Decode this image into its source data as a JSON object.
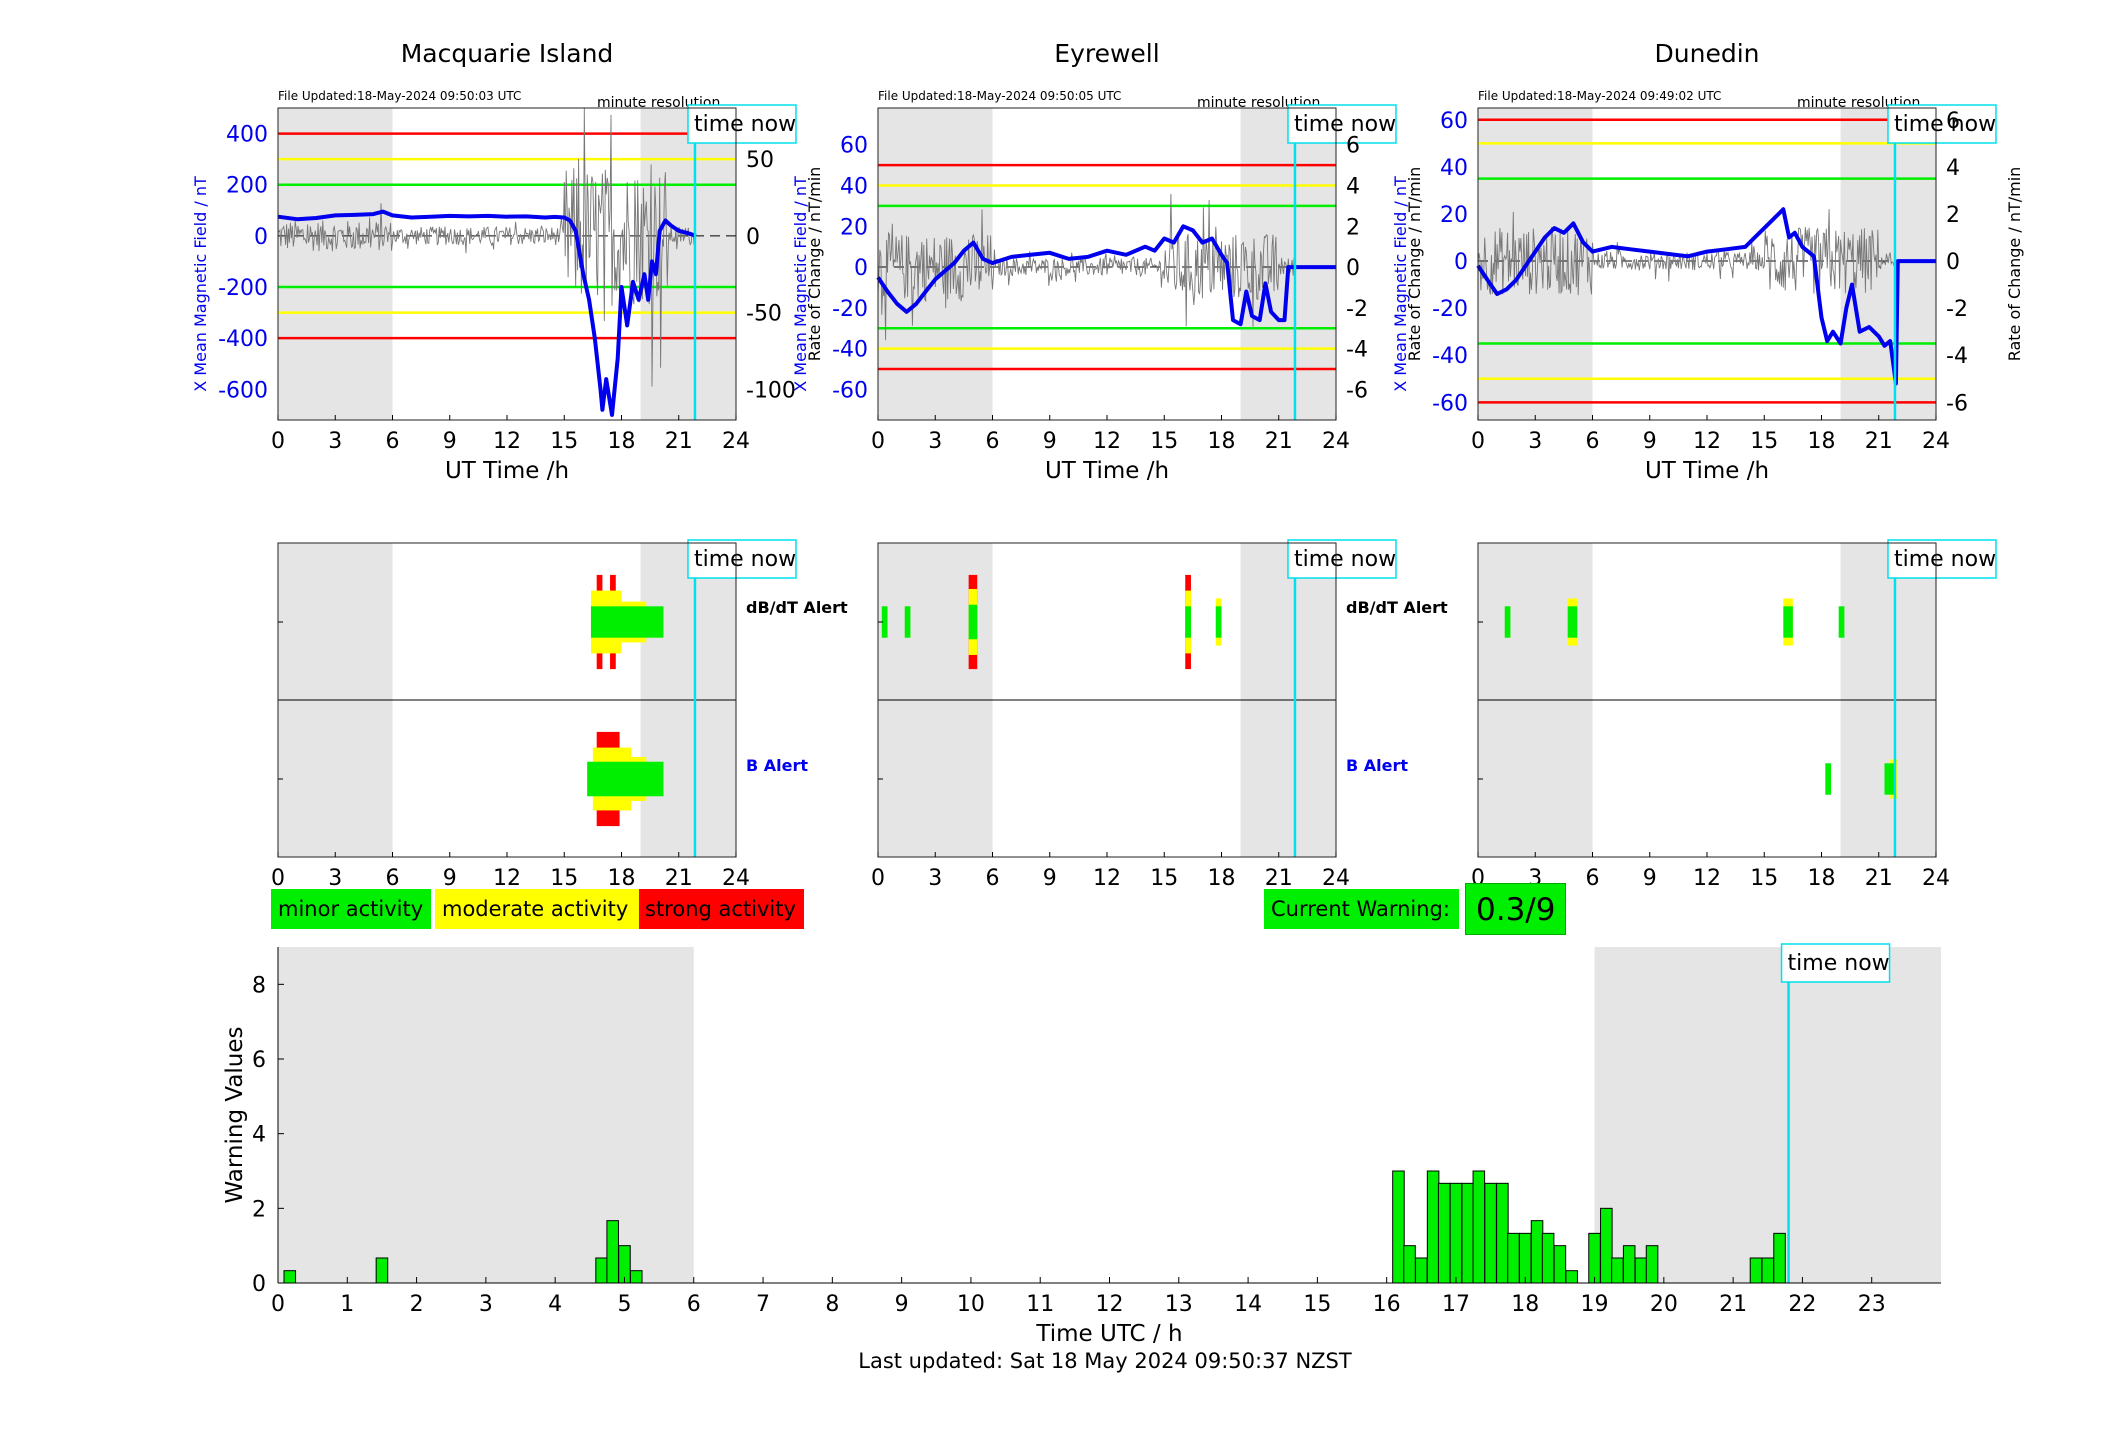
{
  "ut_axis_label": "UT Time /h",
  "time_now_label": "time now",
  "minute_resolution_label": "minute resolution",
  "chart_data": [
    {
      "type": "line",
      "title": "Macquarie Island",
      "file_updated": "File Updated:18-May-2024 09:50:03 UTC",
      "ylabel_left": "X Mean Magnetic Field / nT",
      "ylabel_right": "Rate of Change / nT/min",
      "xlim": [
        0,
        24
      ],
      "ylim_left": [
        -720,
        500
      ],
      "ylim_right": [
        -120,
        83.3
      ],
      "x_ticks": [
        0,
        3,
        6,
        9,
        12,
        15,
        18,
        21,
        24
      ],
      "y_ticks_left": [
        400,
        200,
        0,
        -200,
        -400,
        -600
      ],
      "y_ticks_right": [
        50,
        0,
        -50,
        -100
      ],
      "thresholds": [
        {
          "level": "strong",
          "value": 400,
          "color": "#ff0000"
        },
        {
          "level": "moderate",
          "value": 300,
          "color": "#ffff00"
        },
        {
          "level": "minor",
          "value": 200,
          "color": "#00ee00"
        },
        {
          "level": "minor",
          "value": -200,
          "color": "#00ee00"
        },
        {
          "level": "moderate",
          "value": -300,
          "color": "#ffff00"
        },
        {
          "level": "strong",
          "value": -400,
          "color": "#ff0000"
        }
      ],
      "night_bands": [
        [
          0,
          6
        ],
        [
          19,
          24
        ]
      ],
      "time_now": 21.85,
      "series_x_mean": {
        "x": [
          0,
          1,
          2,
          3,
          4,
          5,
          5.5,
          6,
          7,
          8,
          9,
          10,
          11,
          12,
          13,
          14,
          14.5,
          15,
          15.3,
          15.6,
          16,
          16.3,
          16.6,
          16.9,
          17.0,
          17.2,
          17.5,
          17.8,
          18.0,
          18.3,
          18.6,
          18.9,
          19.2,
          19.4,
          19.6,
          19.8,
          20.0,
          20.3,
          20.6,
          21.0,
          21.5,
          21.9
        ],
        "y": [
          75,
          65,
          70,
          80,
          82,
          85,
          95,
          80,
          72,
          75,
          78,
          76,
          78,
          75,
          76,
          72,
          74,
          72,
          60,
          20,
          -150,
          -250,
          -400,
          -600,
          -680,
          -560,
          -700,
          -480,
          -200,
          -350,
          -180,
          -250,
          -150,
          -250,
          -100,
          -150,
          20,
          60,
          40,
          20,
          10,
          0
        ]
      },
      "series_rate_note": "grey 1-minute rate of change trace"
    },
    {
      "type": "line",
      "title": "Eyrewell",
      "file_updated": "File Updated:18-May-2024 09:50:05 UTC",
      "ylabel_left": "X Mean Magnetic Field / nT",
      "ylabel_right": "Rate of Change / nT/min",
      "xlim": [
        0,
        24
      ],
      "ylim_left": [
        -75,
        78
      ],
      "ylim_right": [
        -7.5,
        7.8
      ],
      "x_ticks": [
        0,
        3,
        6,
        9,
        12,
        15,
        18,
        21,
        24
      ],
      "y_ticks_left": [
        60,
        40,
        20,
        0,
        -20,
        -40,
        -60
      ],
      "y_ticks_right": [
        6,
        4,
        2,
        0,
        -2,
        -4,
        -6
      ],
      "thresholds": [
        {
          "level": "strong",
          "value": 50,
          "color": "#ff0000"
        },
        {
          "level": "moderate",
          "value": 40,
          "color": "#ffff00"
        },
        {
          "level": "minor",
          "value": 30,
          "color": "#00ee00"
        },
        {
          "level": "minor",
          "value": -30,
          "color": "#00ee00"
        },
        {
          "level": "moderate",
          "value": -40,
          "color": "#ffff00"
        },
        {
          "level": "strong",
          "value": -50,
          "color": "#ff0000"
        }
      ],
      "night_bands": [
        [
          0,
          6
        ],
        [
          19,
          24
        ]
      ],
      "time_now": 21.85,
      "series_x_mean": {
        "x": [
          0,
          0.5,
          1,
          1.5,
          2,
          2.5,
          3,
          3.5,
          4,
          4.5,
          5,
          5.5,
          6,
          7,
          8,
          9,
          10,
          11,
          12,
          13,
          14,
          14.5,
          15,
          15.5,
          16,
          16.5,
          17,
          17.5,
          18,
          18.3,
          18.6,
          19,
          19.3,
          19.6,
          20,
          20.3,
          20.6,
          21,
          21.3,
          21.5,
          22,
          24
        ],
        "y": [
          -5,
          -12,
          -18,
          -22,
          -18,
          -12,
          -6,
          -2,
          2,
          8,
          12,
          4,
          2,
          5,
          6,
          7,
          4,
          5,
          8,
          6,
          10,
          8,
          14,
          12,
          20,
          18,
          12,
          14,
          6,
          2,
          -26,
          -28,
          -12,
          -24,
          -26,
          -8,
          -22,
          -26,
          -26,
          0,
          0,
          0
        ]
      },
      "series_rate_note": "grey 1-minute rate of change trace"
    },
    {
      "type": "line",
      "title": "Dunedin",
      "file_updated": "File Updated:18-May-2024 09:49:02 UTC",
      "ylabel_left": "X Mean Magnetic Field / nT",
      "ylabel_right": "Rate of Change / nT/min",
      "xlim": [
        0,
        24
      ],
      "ylim_left": [
        -67.5,
        65
      ],
      "ylim_right": [
        -6.75,
        6.5
      ],
      "x_ticks": [
        0,
        3,
        6,
        9,
        12,
        15,
        18,
        21,
        24
      ],
      "y_ticks_left": [
        60,
        40,
        20,
        0,
        -20,
        -40,
        -60
      ],
      "y_ticks_right": [
        6,
        4,
        2,
        0,
        -2,
        -4,
        -6
      ],
      "thresholds": [
        {
          "level": "strong",
          "value": 60,
          "color": "#ff0000"
        },
        {
          "level": "moderate",
          "value": 50,
          "color": "#ffff00"
        },
        {
          "level": "minor",
          "value": 35,
          "color": "#00ee00"
        },
        {
          "level": "minor",
          "value": -35,
          "color": "#00ee00"
        },
        {
          "level": "moderate",
          "value": -50,
          "color": "#ffff00"
        },
        {
          "level": "strong",
          "value": -60,
          "color": "#ff0000"
        }
      ],
      "night_bands": [
        [
          0,
          6
        ],
        [
          19,
          24
        ]
      ],
      "time_now": 21.85,
      "series_x_mean": {
        "x": [
          0,
          0.5,
          1,
          1.5,
          2,
          2.5,
          3,
          3.5,
          4,
          4.5,
          5,
          5.5,
          6,
          7,
          8,
          9,
          10,
          11,
          12,
          13,
          14,
          14.5,
          15,
          15.5,
          16,
          16.3,
          16.6,
          17,
          17.3,
          17.6,
          18,
          18.3,
          18.6,
          19,
          19.3,
          19.6,
          20,
          20.5,
          21,
          21.3,
          21.6,
          21.9,
          22,
          24
        ],
        "y": [
          -2,
          -8,
          -14,
          -12,
          -8,
          -2,
          4,
          10,
          14,
          12,
          16,
          8,
          4,
          6,
          5,
          4,
          3,
          2,
          4,
          5,
          6,
          10,
          14,
          18,
          22,
          10,
          12,
          6,
          4,
          2,
          -24,
          -34,
          -30,
          -35,
          -20,
          -10,
          -30,
          -28,
          -32,
          -36,
          -34,
          -52,
          0,
          0
        ]
      },
      "series_rate_note": "grey 1-minute rate of change trace"
    }
  ],
  "alerts": {
    "dbdt_label": "dB/dT Alert",
    "b_label": "B Alert",
    "stations": [
      {
        "dbdt": [
          {
            "x0": 16.7,
            "x1": 17.0,
            "h": 0.6,
            "color": "#ff0000"
          },
          {
            "x0": 17.4,
            "x1": 17.7,
            "h": 0.6,
            "color": "#ff0000"
          },
          {
            "x0": 16.4,
            "x1": 18.0,
            "h": 0.4,
            "color": "#ffff00"
          },
          {
            "x0": 18.0,
            "x1": 19.3,
            "h": 0.26,
            "color": "#ffff00"
          },
          {
            "x0": 16.4,
            "x1": 20.2,
            "h": 0.2,
            "color": "#00ee00"
          }
        ],
        "b": [
          {
            "x0": 16.7,
            "x1": 17.9,
            "h": 0.6,
            "color": "#ff0000"
          },
          {
            "x0": 16.5,
            "x1": 18.5,
            "h": 0.4,
            "color": "#ffff00"
          },
          {
            "x0": 18.5,
            "x1": 19.3,
            "h": 0.28,
            "color": "#ffff00"
          },
          {
            "x0": 16.2,
            "x1": 20.2,
            "h": 0.22,
            "color": "#00ee00"
          }
        ]
      },
      {
        "dbdt": [
          {
            "x0": 4.75,
            "x1": 5.2,
            "h": 0.6,
            "color": "#ff0000"
          },
          {
            "x0": 4.75,
            "x1": 5.2,
            "h": 0.42,
            "color": "#ffff00"
          },
          {
            "x0": 4.75,
            "x1": 5.2,
            "h": 0.22,
            "color": "#00ee00"
          },
          {
            "x0": 16.1,
            "x1": 16.4,
            "h": 0.6,
            "color": "#ff0000"
          },
          {
            "x0": 16.1,
            "x1": 16.4,
            "h": 0.4,
            "color": "#ffff00"
          },
          {
            "x0": 16.1,
            "x1": 16.4,
            "h": 0.2,
            "color": "#00ee00"
          },
          {
            "x0": 17.7,
            "x1": 18.0,
            "h": 0.3,
            "color": "#ffff00"
          },
          {
            "x0": 17.7,
            "x1": 18.0,
            "h": 0.2,
            "color": "#00ee00"
          },
          {
            "x0": 0.2,
            "x1": 0.5,
            "h": 0.2,
            "color": "#00ee00"
          },
          {
            "x0": 1.4,
            "x1": 1.7,
            "h": 0.2,
            "color": "#00ee00"
          }
        ],
        "b": []
      },
      {
        "dbdt": [
          {
            "x0": 4.7,
            "x1": 5.2,
            "h": 0.3,
            "color": "#ffff00"
          },
          {
            "x0": 4.7,
            "x1": 5.2,
            "h": 0.2,
            "color": "#00ee00"
          },
          {
            "x0": 16.0,
            "x1": 16.5,
            "h": 0.3,
            "color": "#ffff00"
          },
          {
            "x0": 16.0,
            "x1": 16.5,
            "h": 0.2,
            "color": "#00ee00"
          },
          {
            "x0": 1.4,
            "x1": 1.7,
            "h": 0.2,
            "color": "#00ee00"
          },
          {
            "x0": 18.9,
            "x1": 19.2,
            "h": 0.2,
            "color": "#00ee00"
          }
        ],
        "b": [
          {
            "x0": 18.2,
            "x1": 18.5,
            "h": 0.2,
            "color": "#00ee00"
          },
          {
            "x0": 21.6,
            "x1": 22.0,
            "h": 0.25,
            "color": "#ffff00"
          },
          {
            "x0": 21.3,
            "x1": 21.9,
            "h": 0.2,
            "color": "#00ee00"
          }
        ]
      }
    ]
  },
  "legend": {
    "minor": {
      "label": "minor activity",
      "color": "#00ee00"
    },
    "moderate": {
      "label": "moderate activity",
      "color": "#ffff00"
    },
    "strong": {
      "label": "strong activity",
      "color": "#ff0000"
    }
  },
  "current_warning": {
    "label": "Current Warning:",
    "value": "0.3/9",
    "color": "#00ee00"
  },
  "warning_chart": {
    "type": "bar",
    "ylabel": "Warning Values",
    "xlabel": "Time UTC / h",
    "xlim": [
      0,
      24
    ],
    "ylim": [
      0,
      9
    ],
    "x_ticks": [
      0,
      1,
      2,
      3,
      4,
      5,
      6,
      7,
      8,
      9,
      10,
      11,
      12,
      13,
      14,
      15,
      16,
      17,
      18,
      19,
      20,
      21,
      22,
      23
    ],
    "y_ticks": [
      0,
      2,
      4,
      6,
      8
    ],
    "night_bands": [
      [
        0,
        6
      ],
      [
        19,
        24
      ]
    ],
    "time_now": 21.8,
    "bar_color": "#00ee00",
    "bar_width_h": 0.1667,
    "bars": [
      {
        "x": 0.17,
        "v": 0.33
      },
      {
        "x": 1.5,
        "v": 0.67
      },
      {
        "x": 4.67,
        "v": 0.67
      },
      {
        "x": 4.83,
        "v": 1.67
      },
      {
        "x": 5.0,
        "v": 1.0
      },
      {
        "x": 5.17,
        "v": 0.33
      },
      {
        "x": 16.17,
        "v": 3.0
      },
      {
        "x": 16.33,
        "v": 1.0
      },
      {
        "x": 16.5,
        "v": 0.67
      },
      {
        "x": 16.67,
        "v": 3.0
      },
      {
        "x": 16.83,
        "v": 2.67
      },
      {
        "x": 17.0,
        "v": 2.67
      },
      {
        "x": 17.17,
        "v": 2.67
      },
      {
        "x": 17.33,
        "v": 3.0
      },
      {
        "x": 17.5,
        "v": 2.67
      },
      {
        "x": 17.67,
        "v": 2.67
      },
      {
        "x": 17.83,
        "v": 1.33
      },
      {
        "x": 18.0,
        "v": 1.33
      },
      {
        "x": 18.17,
        "v": 1.67
      },
      {
        "x": 18.33,
        "v": 1.33
      },
      {
        "x": 18.5,
        "v": 1.0
      },
      {
        "x": 18.67,
        "v": 0.33
      },
      {
        "x": 19.0,
        "v": 1.33
      },
      {
        "x": 19.17,
        "v": 2.0
      },
      {
        "x": 19.33,
        "v": 0.67
      },
      {
        "x": 19.5,
        "v": 1.0
      },
      {
        "x": 19.67,
        "v": 0.67
      },
      {
        "x": 19.83,
        "v": 1.0
      },
      {
        "x": 21.33,
        "v": 0.67
      },
      {
        "x": 21.5,
        "v": 0.67
      },
      {
        "x": 21.67,
        "v": 1.33
      }
    ]
  },
  "footer": {
    "last_updated": "Last updated: Sat 18 May 2024 09:50:37 NZST"
  }
}
